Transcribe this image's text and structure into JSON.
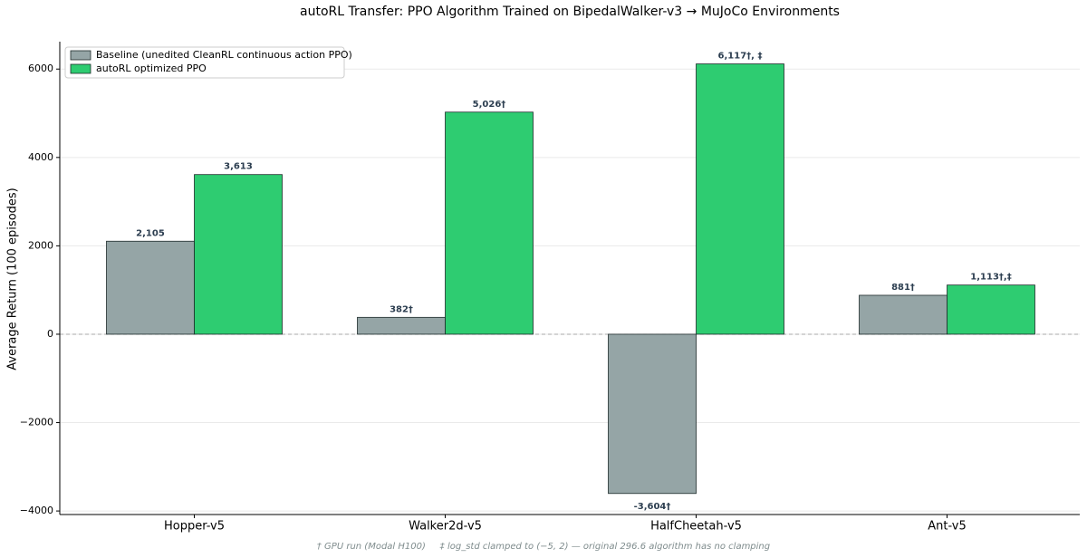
{
  "chart_data": {
    "type": "bar",
    "title": "autoRL Transfer: PPO Algorithm Trained on BipedalWalker-v3 → MuJoCo Environments",
    "ylabel": "Average Return (100 episodes)",
    "categories": [
      "Hopper-v5",
      "Walker2d-v5",
      "HalfCheetah-v5",
      "Ant-v5"
    ],
    "series": [
      {
        "name": "Baseline (unedited CleanRL continuous action PPO)",
        "color": "#95a5a6",
        "values": [
          2105,
          382,
          -3604,
          881
        ],
        "value_labels": [
          "2,105",
          "382†",
          "-3,604†",
          "881†"
        ]
      },
      {
        "name": "autoRL optimized PPO",
        "color": "#2ecc71",
        "values": [
          3613,
          5026,
          6117,
          1113
        ],
        "value_labels": [
          "3,613",
          "5,026†",
          "6,117†, ‡",
          "1,113†,‡"
        ]
      }
    ],
    "ylim": [
      -4080,
      6620
    ],
    "yticks": [
      {
        "value": -4000,
        "label": "−4000"
      },
      {
        "value": -2000,
        "label": "−2000"
      },
      0,
      2000,
      4000,
      6000
    ],
    "grid": true,
    "legend": "upper left",
    "footnote": "† GPU run (Modal H100)     ‡ log_std clamped to (−5, 2) — original 296.6 algorithm has no clamping"
  }
}
